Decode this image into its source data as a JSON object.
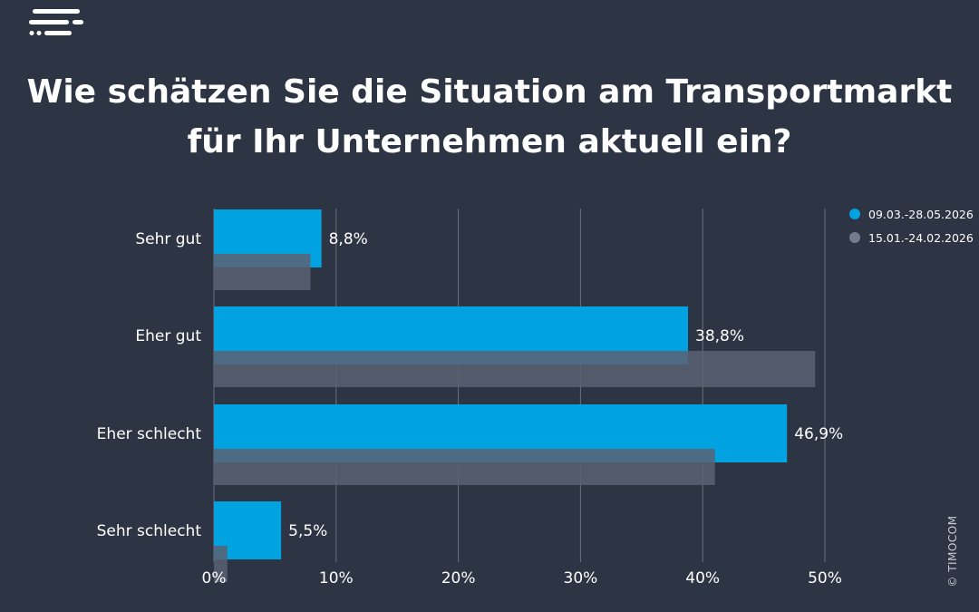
{
  "brand": {
    "logo_icon": "timocom-logo-icon"
  },
  "title": {
    "line1": "Wie schätzen Sie die Situation am Transportmarkt",
    "line2": "für Ihr Unternehmen aktuell ein?"
  },
  "copyright": "© TIMOCOM",
  "colors": {
    "background": "#2d3443",
    "series_current": "#00a3e0",
    "series_previous": "#5b6172",
    "grid": "#6b7080",
    "text": "#ffffff"
  },
  "chart_data": {
    "type": "bar",
    "orientation": "horizontal",
    "title": "Wie schätzen Sie die Situation am Transportmarkt für Ihr Unternehmen aktuell ein?",
    "categories": [
      "Sehr gut",
      "Eher gut",
      "Eher schlecht",
      "Sehr schlecht"
    ],
    "series": [
      {
        "name": "09.03.-28.05.2026",
        "values": [
          8.8,
          38.8,
          46.9,
          5.5
        ],
        "labels": [
          "8,8%",
          "38,8%",
          "46,9%",
          "5,5%"
        ]
      },
      {
        "name": "15.01.-24.02.2026",
        "values": [
          7.9,
          49.2,
          41.0,
          1.1
        ]
      }
    ],
    "xlim": [
      0,
      50
    ],
    "xticks": [
      0,
      10,
      20,
      30,
      40,
      50
    ],
    "xtick_labels": [
      "0%",
      "10%",
      "20%",
      "30%",
      "40%",
      "50%"
    ],
    "xlabel": "",
    "ylabel": "",
    "grid": "vertical",
    "legend_position": "top-right"
  }
}
